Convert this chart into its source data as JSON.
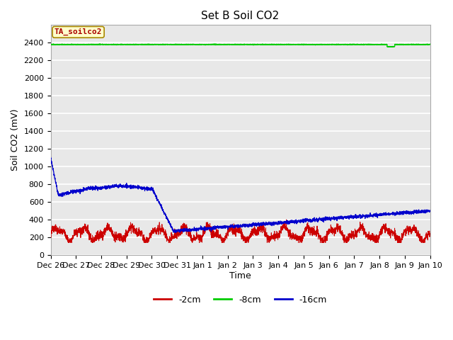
{
  "title": "Set B Soil CO2",
  "ylabel": "Soil CO2 (mV)",
  "xlabel": "Time",
  "annotation_text": "TA_soilco2",
  "annotation_bg": "#ffffcc",
  "annotation_border": "#aa8800",
  "annotation_text_color": "#aa0000",
  "ylim": [
    0,
    2600
  ],
  "yticks": [
    0,
    200,
    400,
    600,
    800,
    1000,
    1200,
    1400,
    1600,
    1800,
    2000,
    2200,
    2400
  ],
  "x_labels": [
    "Dec 26",
    "Dec 27",
    "Dec 28",
    "Dec 29",
    "Dec 30",
    "Dec 31",
    "Jan 1",
    "Jan 2",
    "Jan 3",
    "Jan 4",
    "Jan 5",
    "Jan 6",
    "Jan 7",
    "Jan 8",
    "Jan 9",
    "Jan 10"
  ],
  "line_2cm_color": "#cc0000",
  "line_8cm_color": "#00cc00",
  "line_16cm_color": "#0000cc",
  "legend_labels": [
    "-2cm",
    "-8cm",
    "-16cm"
  ],
  "bg_color": "#e8e8e8",
  "fig_bg_color": "#ffffff",
  "grid_color": "#ffffff",
  "title_fontsize": 11,
  "axis_label_fontsize": 9,
  "tick_fontsize": 8
}
